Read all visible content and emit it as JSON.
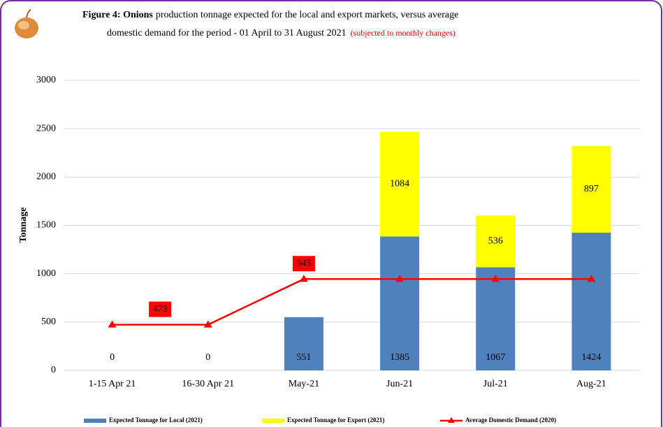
{
  "chart_data": {
    "type": "stacked-bar-line",
    "title_bold": "Figure 4: Onions",
    "title": "production tonnage expected for the local and export markets, versus average",
    "title_line2": "domestic demand for the period - 01 April to 31 August 2021",
    "subtitle": "(subjected to monthly changes)",
    "ylabel": "Tonnage",
    "categories": [
      "1-15 Apr 21",
      "16-30 Apr 21",
      "May-21",
      "Jun-21",
      "Jul-21",
      "Aug-21"
    ],
    "series": [
      {
        "name": "Expected Tonnage for Local (2021)",
        "color": "#4f81bd",
        "kind": "bar",
        "values": [
          0,
          0,
          551,
          1385,
          1067,
          1424
        ]
      },
      {
        "name": "Expected Tonnage for Export (2021)",
        "color": "#ffff00",
        "kind": "bar",
        "values": [
          null,
          null,
          null,
          1084,
          536,
          897
        ]
      },
      {
        "name": "Average Domestic Demand (2020)",
        "color": "#ff0000",
        "kind": "line",
        "values": [
          473,
          473,
          945,
          945,
          945,
          945
        ]
      }
    ],
    "ylim": [
      0,
      3000
    ],
    "yticks": [
      0,
      500,
      1000,
      1500,
      2000,
      2500,
      3000
    ],
    "grid": true
  }
}
